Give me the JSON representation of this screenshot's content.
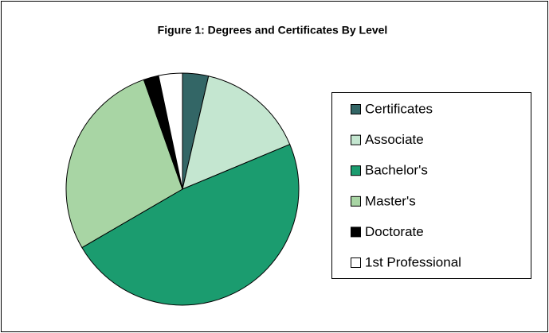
{
  "chart_data": {
    "type": "pie",
    "title": "Figure 1:  Degrees and Certificates By Level",
    "categories": [
      "Certificates",
      "Associate",
      "Bachelor's",
      "Master's",
      "Doctorate",
      "1st Professional"
    ],
    "values": [
      3.6,
      15.1,
      47.9,
      28,
      2.1,
      3.3
    ],
    "colors": [
      "#336666",
      "#c4e6d0",
      "#1b9c6f",
      "#a8d5a4",
      "#000000",
      "#ffffff"
    ],
    "legend": "right"
  }
}
